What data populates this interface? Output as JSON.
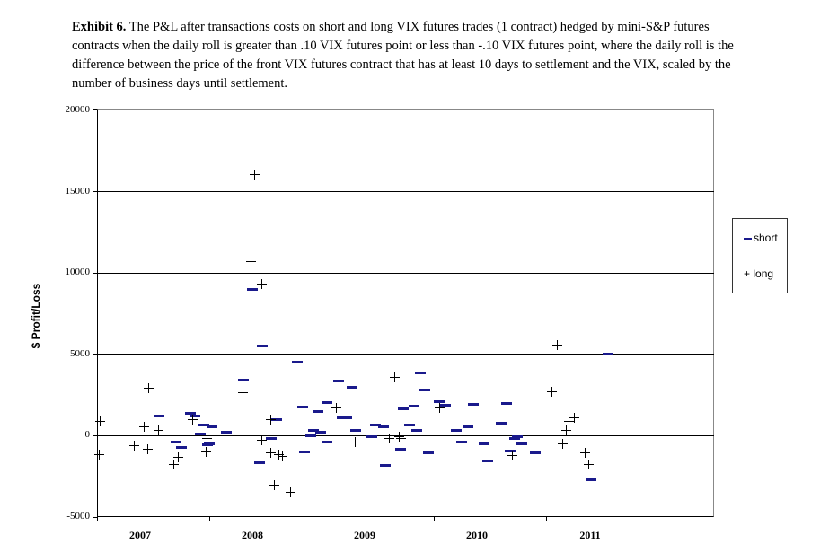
{
  "caption": {
    "label": "Exhibit 6.",
    "text": "The P&L after transactions costs on short and long VIX futures trades (1 contract) hedged by mini-S&P futures contracts when the daily roll is greater than .10 VIX futures point or less than -.10 VIX futures point, where the daily roll is the difference between the price of the front VIX futures contract that has at least 10 days to settlement and the VIX, scaled by the number of business days until settlement."
  },
  "chart_data": {
    "type": "scatter",
    "title": "Exhibit 6. The P&L after transactions costs on short and long VIX futures trades (1 contract) hedged by mini-S&P futures contracts",
    "xlabel": "",
    "ylabel": "$ Profit/Loss",
    "ylim": [
      -5000,
      20000
    ],
    "yticks": [
      "20000",
      "15000",
      "10000",
      "5000",
      "0",
      "-5000"
    ],
    "xticks": [
      "2007",
      "2008",
      "2009",
      "2010",
      "2011"
    ],
    "xlim": [
      2007.0,
      2011.5
    ],
    "grid": "horizontal",
    "legend": {
      "position": "right",
      "entries": [
        "short",
        "long"
      ]
    },
    "series": [
      {
        "name": "short",
        "marker": "dash",
        "color": "#1a1a8c",
        "points": [
          [
            2007.55,
            1210
          ],
          [
            2007.7,
            -440
          ],
          [
            2007.75,
            -720
          ],
          [
            2007.83,
            1330
          ],
          [
            2007.87,
            1160
          ],
          [
            2007.92,
            110
          ],
          [
            2007.95,
            610
          ],
          [
            2007.98,
            -600
          ],
          [
            2008.0,
            -500
          ],
          [
            2008.02,
            500
          ],
          [
            2008.15,
            170
          ],
          [
            2008.3,
            3370
          ],
          [
            2008.38,
            8950
          ],
          [
            2008.47,
            5470
          ],
          [
            2008.45,
            -1660
          ],
          [
            2008.55,
            -220
          ],
          [
            2008.6,
            940
          ],
          [
            2008.78,
            4470
          ],
          [
            2008.83,
            1710
          ],
          [
            2008.85,
            -1000
          ],
          [
            2008.9,
            0
          ],
          [
            2008.93,
            330
          ],
          [
            2008.97,
            1440
          ],
          [
            2008.99,
            220
          ],
          [
            2009.05,
            1990
          ],
          [
            2009.05,
            -390
          ],
          [
            2009.15,
            3310
          ],
          [
            2009.18,
            1100
          ],
          [
            2009.22,
            1050
          ],
          [
            2009.27,
            2930
          ],
          [
            2009.3,
            330
          ],
          [
            2009.45,
            -110
          ],
          [
            2009.48,
            660
          ],
          [
            2009.55,
            500
          ],
          [
            2009.57,
            -1830
          ],
          [
            2009.7,
            -830
          ],
          [
            2009.73,
            1600
          ],
          [
            2009.78,
            660
          ],
          [
            2009.82,
            1770
          ],
          [
            2009.85,
            280
          ],
          [
            2009.88,
            3810
          ],
          [
            2009.92,
            2760
          ],
          [
            2009.95,
            -1050
          ],
          [
            2010.05,
            2040
          ],
          [
            2010.1,
            1820
          ],
          [
            2010.2,
            330
          ],
          [
            2010.3,
            550
          ],
          [
            2010.25,
            -390
          ],
          [
            2010.35,
            1880
          ],
          [
            2010.45,
            -550
          ],
          [
            2010.48,
            -1550
          ],
          [
            2010.6,
            770
          ],
          [
            2010.65,
            1930
          ],
          [
            2010.72,
            -170
          ],
          [
            2010.74,
            -110
          ],
          [
            2010.78,
            -500
          ],
          [
            2010.68,
            -940
          ],
          [
            2010.9,
            -1050
          ],
          [
            2011.4,
            -2700
          ],
          [
            2011.55,
            4970
          ]
        ]
      },
      {
        "name": "long",
        "marker": "plus",
        "color": "#000000",
        "points": [
          [
            2007.03,
            880
          ],
          [
            2007.02,
            -1200
          ],
          [
            2007.33,
            -650
          ],
          [
            2007.42,
            500
          ],
          [
            2007.46,
            2870
          ],
          [
            2007.45,
            -830
          ],
          [
            2007.55,
            280
          ],
          [
            2007.72,
            -1330
          ],
          [
            2007.68,
            -1800
          ],
          [
            2007.85,
            990
          ],
          [
            2007.98,
            -220
          ],
          [
            2007.97,
            -1000
          ],
          [
            2008.3,
            2600
          ],
          [
            2008.4,
            15970
          ],
          [
            2008.37,
            10660
          ],
          [
            2008.47,
            9280
          ],
          [
            2008.55,
            940
          ],
          [
            2008.47,
            -280
          ],
          [
            2008.55,
            -1050
          ],
          [
            2008.62,
            -1160
          ],
          [
            2008.65,
            -1270
          ],
          [
            2008.58,
            -3040
          ],
          [
            2008.72,
            -3480
          ],
          [
            2009.08,
            610
          ],
          [
            2009.13,
            1660
          ],
          [
            2009.3,
            -440
          ],
          [
            2009.6,
            -170
          ],
          [
            2009.65,
            3530
          ],
          [
            2009.69,
            -110
          ],
          [
            2009.71,
            -220
          ],
          [
            2010.05,
            1660
          ],
          [
            2010.7,
            -1220
          ],
          [
            2011.05,
            2650
          ],
          [
            2011.1,
            5520
          ],
          [
            2011.15,
            -500
          ],
          [
            2011.18,
            330
          ],
          [
            2011.2,
            880
          ],
          [
            2011.25,
            1100
          ],
          [
            2011.35,
            -1050
          ],
          [
            2011.38,
            -1770
          ]
        ]
      }
    ]
  },
  "axis": {
    "ylabel": "$ Profit/Loss",
    "yticks": [
      "20000",
      "15000",
      "10000",
      "5000",
      "0",
      "-5000"
    ],
    "xticks": [
      "2007",
      "2008",
      "2009",
      "2010",
      "2011"
    ]
  },
  "legend": {
    "short_label": "short",
    "long_label": "long",
    "short_symbol": "–",
    "long_symbol": "+"
  }
}
